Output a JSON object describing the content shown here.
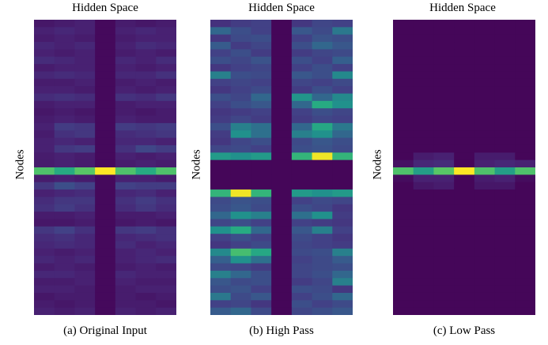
{
  "figure": {
    "panels": [
      {
        "title": "Hidden Space",
        "ylabel": "Nodes",
        "caption": "(a) Original Input"
      },
      {
        "title": "Hidden Space",
        "ylabel": "Nodes",
        "caption": "(b) High Pass"
      },
      {
        "title": "Hidden Space",
        "ylabel": "Nodes",
        "caption": "(c) Low Pass"
      }
    ]
  },
  "chart_data": [
    {
      "type": "heatmap",
      "title": "Hidden Space",
      "ylabel": "Nodes",
      "caption": "(a) Original Input",
      "colormap": "viridis",
      "cols": 7,
      "values": [
        [
          0.08,
          0.1,
          0.12,
          0.03,
          0.1,
          0.08,
          0.1
        ],
        [
          0.12,
          0.14,
          0.12,
          0.03,
          0.12,
          0.14,
          0.12
        ],
        [
          0.1,
          0.12,
          0.1,
          0.03,
          0.1,
          0.12,
          0.12
        ],
        [
          0.14,
          0.12,
          0.14,
          0.03,
          0.12,
          0.16,
          0.14
        ],
        [
          0.12,
          0.1,
          0.12,
          0.03,
          0.1,
          0.12,
          0.1
        ],
        [
          0.16,
          0.14,
          0.12,
          0.03,
          0.14,
          0.12,
          0.16
        ],
        [
          0.1,
          0.12,
          0.12,
          0.03,
          0.12,
          0.1,
          0.12
        ],
        [
          0.14,
          0.16,
          0.14,
          0.03,
          0.14,
          0.14,
          0.18
        ],
        [
          0.1,
          0.1,
          0.12,
          0.03,
          0.1,
          0.12,
          0.1
        ],
        [
          0.12,
          0.12,
          0.1,
          0.03,
          0.12,
          0.1,
          0.12
        ],
        [
          0.16,
          0.18,
          0.16,
          0.03,
          0.18,
          0.16,
          0.2
        ],
        [
          0.1,
          0.12,
          0.12,
          0.03,
          0.1,
          0.12,
          0.12
        ],
        [
          0.08,
          0.1,
          0.08,
          0.03,
          0.1,
          0.08,
          0.1
        ],
        [
          0.1,
          0.12,
          0.1,
          0.03,
          0.12,
          0.1,
          0.1
        ],
        [
          0.12,
          0.22,
          0.2,
          0.03,
          0.22,
          0.2,
          0.22
        ],
        [
          0.1,
          0.18,
          0.2,
          0.03,
          0.16,
          0.18,
          0.2
        ],
        [
          0.12,
          0.14,
          0.12,
          0.03,
          0.14,
          0.14,
          0.12
        ],
        [
          0.12,
          0.2,
          0.22,
          0.03,
          0.18,
          0.26,
          0.22
        ],
        [
          0.1,
          0.12,
          0.1,
          0.03,
          0.12,
          0.1,
          0.12
        ],
        [
          0.1,
          0.12,
          0.1,
          0.03,
          0.1,
          0.12,
          0.1
        ],
        [
          0.72,
          0.62,
          0.74,
          1.0,
          0.72,
          0.62,
          0.72
        ],
        [
          0.1,
          0.12,
          0.1,
          0.03,
          0.12,
          0.12,
          0.1
        ],
        [
          0.2,
          0.3,
          0.24,
          0.03,
          0.24,
          0.22,
          0.22
        ],
        [
          0.12,
          0.14,
          0.16,
          0.03,
          0.14,
          0.16,
          0.12
        ],
        [
          0.16,
          0.2,
          0.2,
          0.03,
          0.18,
          0.22,
          0.18
        ],
        [
          0.18,
          0.22,
          0.18,
          0.03,
          0.16,
          0.2,
          0.16
        ],
        [
          0.1,
          0.1,
          0.12,
          0.03,
          0.1,
          0.1,
          0.12
        ],
        [
          0.08,
          0.08,
          0.1,
          0.03,
          0.08,
          0.1,
          0.08
        ],
        [
          0.2,
          0.24,
          0.18,
          0.03,
          0.2,
          0.22,
          0.18
        ],
        [
          0.16,
          0.18,
          0.14,
          0.03,
          0.14,
          0.16,
          0.18
        ],
        [
          0.14,
          0.16,
          0.14,
          0.03,
          0.16,
          0.12,
          0.14
        ],
        [
          0.12,
          0.1,
          0.12,
          0.03,
          0.12,
          0.14,
          0.12
        ],
        [
          0.14,
          0.12,
          0.14,
          0.03,
          0.12,
          0.14,
          0.16
        ],
        [
          0.1,
          0.12,
          0.1,
          0.03,
          0.1,
          0.12,
          0.1
        ],
        [
          0.14,
          0.14,
          0.12,
          0.03,
          0.14,
          0.12,
          0.12
        ],
        [
          0.1,
          0.1,
          0.12,
          0.03,
          0.12,
          0.1,
          0.1
        ],
        [
          0.12,
          0.12,
          0.1,
          0.03,
          0.1,
          0.12,
          0.12
        ],
        [
          0.08,
          0.1,
          0.1,
          0.03,
          0.1,
          0.08,
          0.1
        ],
        [
          0.1,
          0.08,
          0.1,
          0.03,
          0.1,
          0.1,
          0.08
        ],
        [
          0.12,
          0.1,
          0.12,
          0.03,
          0.12,
          0.1,
          0.12
        ]
      ]
    },
    {
      "type": "heatmap",
      "title": "Hidden Space",
      "ylabel": "Nodes",
      "caption": "(b) High Pass",
      "colormap": "viridis",
      "cols": 7,
      "values": [
        [
          0.18,
          0.22,
          0.24,
          0.02,
          0.2,
          0.26,
          0.24
        ],
        [
          0.4,
          0.3,
          0.24,
          0.02,
          0.34,
          0.28,
          0.44
        ],
        [
          0.2,
          0.28,
          0.3,
          0.02,
          0.24,
          0.32,
          0.3
        ],
        [
          0.36,
          0.22,
          0.26,
          0.02,
          0.3,
          0.4,
          0.34
        ],
        [
          0.24,
          0.3,
          0.22,
          0.02,
          0.22,
          0.26,
          0.28
        ],
        [
          0.3,
          0.26,
          0.32,
          0.02,
          0.3,
          0.24,
          0.38
        ],
        [
          0.2,
          0.24,
          0.26,
          0.02,
          0.24,
          0.3,
          0.24
        ],
        [
          0.46,
          0.3,
          0.28,
          0.02,
          0.34,
          0.3,
          0.48
        ],
        [
          0.24,
          0.26,
          0.24,
          0.02,
          0.26,
          0.24,
          0.28
        ],
        [
          0.2,
          0.24,
          0.28,
          0.02,
          0.22,
          0.3,
          0.24
        ],
        [
          0.3,
          0.26,
          0.4,
          0.02,
          0.52,
          0.4,
          0.48
        ],
        [
          0.24,
          0.3,
          0.34,
          0.02,
          0.4,
          0.62,
          0.5
        ],
        [
          0.2,
          0.22,
          0.24,
          0.02,
          0.24,
          0.3,
          0.26
        ],
        [
          0.22,
          0.26,
          0.22,
          0.02,
          0.22,
          0.26,
          0.24
        ],
        [
          0.3,
          0.46,
          0.42,
          0.02,
          0.4,
          0.6,
          0.44
        ],
        [
          0.22,
          0.5,
          0.42,
          0.02,
          0.46,
          0.5,
          0.4
        ],
        [
          0.2,
          0.26,
          0.3,
          0.02,
          0.28,
          0.34,
          0.3
        ],
        [
          0.26,
          0.28,
          0.24,
          0.02,
          0.3,
          0.32,
          0.28
        ],
        [
          0.54,
          0.5,
          0.54,
          0.02,
          0.66,
          0.98,
          0.66
        ],
        [
          0.02,
          0.02,
          0.02,
          0.02,
          0.02,
          0.02,
          0.02
        ],
        [
          0.02,
          0.02,
          0.02,
          0.02,
          0.02,
          0.02,
          0.02
        ],
        [
          0.02,
          0.02,
          0.02,
          0.02,
          0.02,
          0.02,
          0.02
        ],
        [
          0.02,
          0.02,
          0.02,
          0.02,
          0.02,
          0.02,
          0.02
        ],
        [
          0.66,
          0.98,
          0.66,
          0.02,
          0.54,
          0.5,
          0.54
        ],
        [
          0.28,
          0.32,
          0.3,
          0.02,
          0.24,
          0.28,
          0.26
        ],
        [
          0.3,
          0.34,
          0.28,
          0.02,
          0.3,
          0.26,
          0.2
        ],
        [
          0.4,
          0.5,
          0.46,
          0.02,
          0.42,
          0.5,
          0.22
        ],
        [
          0.26,
          0.3,
          0.24,
          0.02,
          0.24,
          0.22,
          0.2
        ],
        [
          0.5,
          0.62,
          0.4,
          0.02,
          0.34,
          0.46,
          0.24
        ],
        [
          0.24,
          0.3,
          0.24,
          0.02,
          0.28,
          0.24,
          0.2
        ],
        [
          0.2,
          0.24,
          0.28,
          0.02,
          0.26,
          0.24,
          0.22
        ],
        [
          0.48,
          0.7,
          0.6,
          0.02,
          0.28,
          0.3,
          0.46
        ],
        [
          0.38,
          0.5,
          0.42,
          0.02,
          0.24,
          0.28,
          0.36
        ],
        [
          0.28,
          0.26,
          0.22,
          0.02,
          0.26,
          0.28,
          0.3
        ],
        [
          0.46,
          0.4,
          0.3,
          0.02,
          0.26,
          0.3,
          0.4
        ],
        [
          0.34,
          0.28,
          0.3,
          0.02,
          0.22,
          0.26,
          0.46
        ],
        [
          0.3,
          0.32,
          0.24,
          0.02,
          0.3,
          0.28,
          0.2
        ],
        [
          0.44,
          0.28,
          0.34,
          0.02,
          0.24,
          0.3,
          0.4
        ],
        [
          0.24,
          0.26,
          0.2,
          0.02,
          0.3,
          0.24,
          0.28
        ],
        [
          0.36,
          0.4,
          0.28,
          0.02,
          0.26,
          0.3,
          0.34
        ]
      ]
    },
    {
      "type": "heatmap",
      "title": "Hidden Space",
      "ylabel": "Nodes",
      "caption": "(c) Low Pass",
      "colormap": "viridis",
      "cols": 7,
      "values": [
        [
          0.02,
          0.02,
          0.02,
          0.02,
          0.02,
          0.02,
          0.02
        ],
        [
          0.02,
          0.02,
          0.02,
          0.02,
          0.02,
          0.02,
          0.02
        ],
        [
          0.02,
          0.02,
          0.02,
          0.02,
          0.02,
          0.02,
          0.02
        ],
        [
          0.02,
          0.02,
          0.02,
          0.02,
          0.02,
          0.02,
          0.02
        ],
        [
          0.02,
          0.02,
          0.02,
          0.02,
          0.02,
          0.02,
          0.02
        ],
        [
          0.02,
          0.02,
          0.02,
          0.02,
          0.02,
          0.02,
          0.02
        ],
        [
          0.02,
          0.02,
          0.02,
          0.02,
          0.02,
          0.02,
          0.02
        ],
        [
          0.02,
          0.02,
          0.02,
          0.02,
          0.02,
          0.02,
          0.02
        ],
        [
          0.02,
          0.02,
          0.02,
          0.02,
          0.02,
          0.02,
          0.02
        ],
        [
          0.02,
          0.02,
          0.02,
          0.02,
          0.02,
          0.02,
          0.02
        ],
        [
          0.02,
          0.02,
          0.02,
          0.02,
          0.02,
          0.02,
          0.02
        ],
        [
          0.02,
          0.02,
          0.02,
          0.02,
          0.02,
          0.02,
          0.02
        ],
        [
          0.02,
          0.02,
          0.02,
          0.02,
          0.02,
          0.02,
          0.02
        ],
        [
          0.02,
          0.02,
          0.02,
          0.02,
          0.02,
          0.02,
          0.02
        ],
        [
          0.02,
          0.02,
          0.02,
          0.02,
          0.02,
          0.02,
          0.02
        ],
        [
          0.02,
          0.02,
          0.02,
          0.02,
          0.02,
          0.02,
          0.02
        ],
        [
          0.02,
          0.02,
          0.02,
          0.02,
          0.02,
          0.02,
          0.02
        ],
        [
          0.02,
          0.02,
          0.02,
          0.02,
          0.02,
          0.02,
          0.02
        ],
        [
          0.02,
          0.1,
          0.12,
          0.02,
          0.1,
          0.1,
          0.02
        ],
        [
          0.06,
          0.14,
          0.16,
          0.02,
          0.12,
          0.14,
          0.12
        ],
        [
          0.72,
          0.56,
          0.74,
          1.0,
          0.72,
          0.56,
          0.72
        ],
        [
          0.04,
          0.12,
          0.12,
          0.02,
          0.1,
          0.12,
          0.04
        ],
        [
          0.02,
          0.08,
          0.1,
          0.02,
          0.08,
          0.08,
          0.02
        ],
        [
          0.02,
          0.02,
          0.02,
          0.02,
          0.02,
          0.02,
          0.02
        ],
        [
          0.02,
          0.02,
          0.02,
          0.02,
          0.02,
          0.02,
          0.02
        ],
        [
          0.02,
          0.02,
          0.02,
          0.02,
          0.02,
          0.02,
          0.02
        ],
        [
          0.02,
          0.02,
          0.02,
          0.02,
          0.02,
          0.02,
          0.02
        ],
        [
          0.02,
          0.02,
          0.02,
          0.02,
          0.02,
          0.02,
          0.02
        ],
        [
          0.02,
          0.02,
          0.02,
          0.02,
          0.02,
          0.02,
          0.02
        ],
        [
          0.02,
          0.02,
          0.02,
          0.02,
          0.02,
          0.02,
          0.02
        ],
        [
          0.02,
          0.02,
          0.02,
          0.02,
          0.02,
          0.02,
          0.02
        ],
        [
          0.02,
          0.02,
          0.02,
          0.02,
          0.02,
          0.02,
          0.02
        ],
        [
          0.02,
          0.02,
          0.02,
          0.02,
          0.02,
          0.02,
          0.02
        ],
        [
          0.02,
          0.02,
          0.02,
          0.02,
          0.02,
          0.02,
          0.02
        ],
        [
          0.02,
          0.02,
          0.02,
          0.02,
          0.02,
          0.02,
          0.02
        ],
        [
          0.02,
          0.02,
          0.02,
          0.02,
          0.02,
          0.02,
          0.02
        ],
        [
          0.02,
          0.02,
          0.02,
          0.02,
          0.02,
          0.02,
          0.02
        ],
        [
          0.02,
          0.02,
          0.02,
          0.02,
          0.02,
          0.02,
          0.02
        ],
        [
          0.02,
          0.02,
          0.02,
          0.02,
          0.02,
          0.02,
          0.02
        ],
        [
          0.02,
          0.02,
          0.02,
          0.02,
          0.02,
          0.02,
          0.02
        ]
      ]
    }
  ]
}
